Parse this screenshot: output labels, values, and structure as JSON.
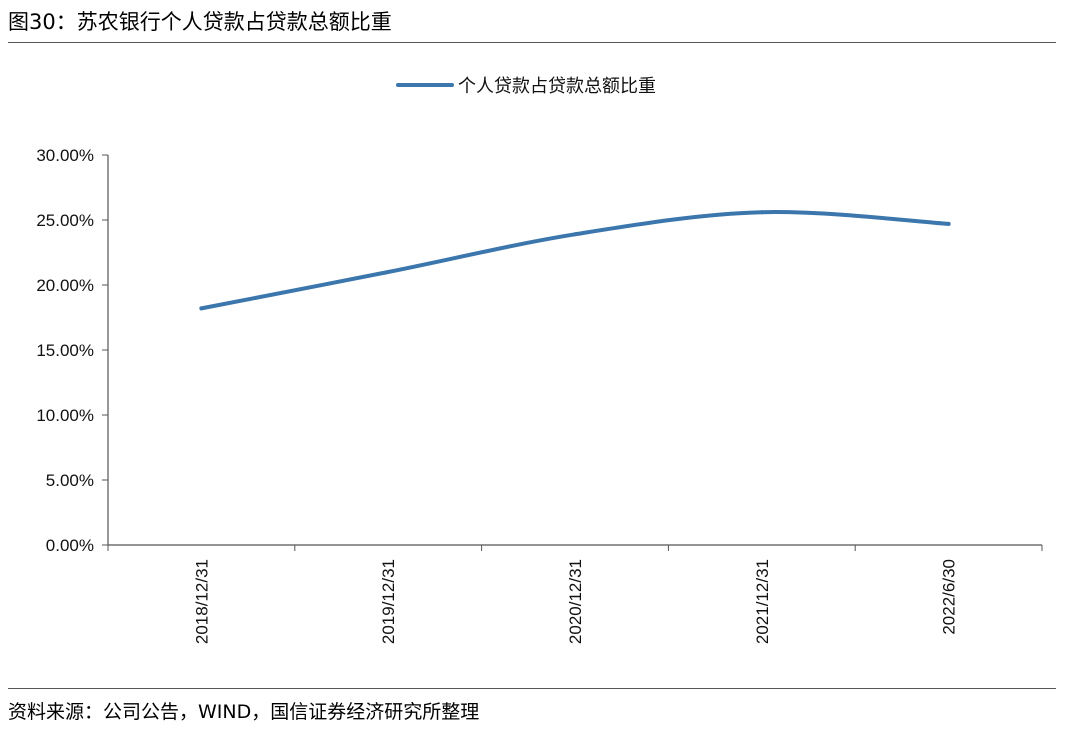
{
  "figure": {
    "title": "图30：苏农银行个人贷款占贷款总额比重",
    "source": "资料来源：公司公告，WIND，国信证券经济研究所整理"
  },
  "chart_data": {
    "type": "line",
    "categories": [
      "2018/12/31",
      "2019/12/31",
      "2020/12/31",
      "2021/12/31",
      "2022/6/30"
    ],
    "series": [
      {
        "name": "个人贷款占贷款总额比重",
        "values": [
          18.2,
          21.0,
          23.9,
          25.6,
          24.7
        ],
        "color": "#3b76ad"
      }
    ],
    "y_ticks": [
      "0.00%",
      "5.00%",
      "10.00%",
      "15.00%",
      "20.00%",
      "25.00%",
      "30.00%"
    ],
    "ylim": [
      0,
      30
    ],
    "y_unit": "%",
    "grid": false,
    "legend_position": "top-center",
    "smooth": true
  }
}
